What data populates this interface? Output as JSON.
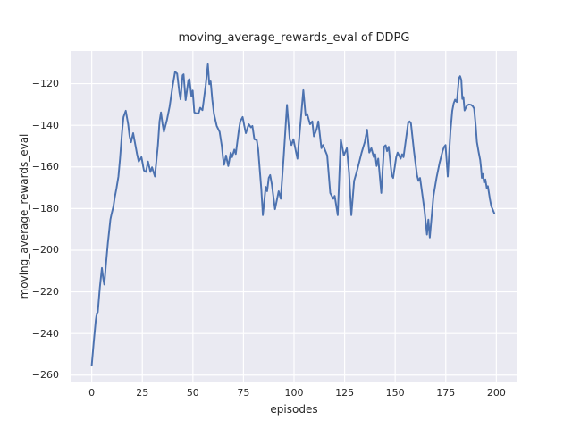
{
  "figure": {
    "title": "moving_average_rewards_eval of DDPG",
    "xlabel": "episodes",
    "ylabel": "moving_average_rewards_eval",
    "background_color": "#ffffff",
    "axes_background_color": "#eaeaf2",
    "grid_color": "#ffffff",
    "text_color": "#262626",
    "line_color": "#4c72b0"
  },
  "chart_data": {
    "type": "line",
    "title": "moving_average_rewards_eval of DDPG",
    "xlabel": "episodes",
    "ylabel": "moving_average_rewards_eval",
    "xlim": [
      -10,
      210
    ],
    "ylim": [
      -263.1,
      -104.3
    ],
    "xticks": [
      0,
      25,
      50,
      75,
      100,
      125,
      150,
      175,
      200
    ],
    "yticks": [
      -260,
      -240,
      -220,
      -200,
      -180,
      -160,
      -140,
      -120
    ],
    "grid": true,
    "legend": false,
    "series": [
      {
        "name": "moving_average_rewards_eval",
        "color": "#4c72b0",
        "points": [
          [
            0,
            -255.4
          ],
          [
            1,
            -244
          ],
          [
            2,
            -233.5
          ],
          [
            2.5,
            -230.4
          ],
          [
            3,
            -229.8
          ],
          [
            4,
            -218
          ],
          [
            5,
            -208.5
          ],
          [
            5.6,
            -213
          ],
          [
            6.2,
            -216.5
          ],
          [
            7,
            -207
          ],
          [
            8,
            -196.5
          ],
          [
            8.5,
            -191.8
          ],
          [
            9.2,
            -185.3
          ],
          [
            9.7,
            -183
          ],
          [
            10.7,
            -179
          ],
          [
            11.4,
            -174.6
          ],
          [
            12.2,
            -170.3
          ],
          [
            13.2,
            -164.6
          ],
          [
            14,
            -156
          ],
          [
            15,
            -143
          ],
          [
            15.7,
            -136
          ],
          [
            16.8,
            -133
          ],
          [
            18,
            -139.5
          ],
          [
            18.7,
            -145.3
          ],
          [
            19.4,
            -148.1
          ],
          [
            20.5,
            -143.8
          ],
          [
            21.7,
            -150.3
          ],
          [
            22.4,
            -153.8
          ],
          [
            23.2,
            -157.4
          ],
          [
            24.6,
            -155.3
          ],
          [
            25.8,
            -161.7
          ],
          [
            26.8,
            -162.4
          ],
          [
            27.8,
            -157.4
          ],
          [
            29,
            -162.4
          ],
          [
            29.8,
            -160.2
          ],
          [
            31.2,
            -164.6
          ],
          [
            32.7,
            -149.5
          ],
          [
            33.5,
            -138.1
          ],
          [
            34.2,
            -133.8
          ],
          [
            35,
            -139.5
          ],
          [
            35.7,
            -143.1
          ],
          [
            37.2,
            -137.4
          ],
          [
            38.5,
            -131
          ],
          [
            40,
            -121
          ],
          [
            41.2,
            -114.3
          ],
          [
            42.2,
            -115.2
          ],
          [
            43.3,
            -124.3
          ],
          [
            43.9,
            -127.5
          ],
          [
            44.9,
            -116
          ],
          [
            45.4,
            -115.5
          ],
          [
            46.4,
            -127.9
          ],
          [
            47.8,
            -118.3
          ],
          [
            48.3,
            -117.8
          ],
          [
            49.3,
            -126.2
          ],
          [
            49.9,
            -123.3
          ],
          [
            50.7,
            -133.8
          ],
          [
            51.7,
            -134.3
          ],
          [
            52.9,
            -134
          ],
          [
            53.6,
            -131.6
          ],
          [
            54.7,
            -132.7
          ],
          [
            56.3,
            -121
          ],
          [
            57.4,
            -110.7
          ],
          [
            58.1,
            -120.3
          ],
          [
            58.8,
            -118.9
          ],
          [
            59.6,
            -127.5
          ],
          [
            60.4,
            -134.5
          ],
          [
            61.8,
            -140.3
          ],
          [
            63.2,
            -143.1
          ],
          [
            64.3,
            -150
          ],
          [
            64.9,
            -155.5
          ],
          [
            65.4,
            -159
          ],
          [
            66.4,
            -154.5
          ],
          [
            67.5,
            -159.6
          ],
          [
            68.7,
            -153.1
          ],
          [
            69.4,
            -155.3
          ],
          [
            70.5,
            -151.7
          ],
          [
            71.2,
            -153.8
          ],
          [
            72.7,
            -142.4
          ],
          [
            73.4,
            -138.1
          ],
          [
            74.6,
            -136
          ],
          [
            75.7,
            -141.7
          ],
          [
            76.2,
            -143.8
          ],
          [
            77.6,
            -139.5
          ],
          [
            78.7,
            -141
          ],
          [
            79.4,
            -140.3
          ],
          [
            80.4,
            -146.7
          ],
          [
            81.6,
            -147.1
          ],
          [
            82.3,
            -151.7
          ],
          [
            83.1,
            -161.7
          ],
          [
            83.8,
            -170.3
          ],
          [
            84.6,
            -183.2
          ],
          [
            86,
            -169.6
          ],
          [
            86.7,
            -171.7
          ],
          [
            87.5,
            -165.3
          ],
          [
            88.2,
            -163.9
          ],
          [
            89,
            -168.2
          ],
          [
            90.6,
            -180.3
          ],
          [
            92.4,
            -171.7
          ],
          [
            93.4,
            -175.3
          ],
          [
            94.9,
            -154.5
          ],
          [
            96.5,
            -130.2
          ],
          [
            97.9,
            -146.7
          ],
          [
            98.7,
            -149.5
          ],
          [
            99.7,
            -146.7
          ],
          [
            100.9,
            -152.4
          ],
          [
            101.7,
            -156
          ],
          [
            103,
            -141
          ],
          [
            104.6,
            -123.1
          ],
          [
            105.7,
            -135.3
          ],
          [
            106.5,
            -134.5
          ],
          [
            107.9,
            -139.5
          ],
          [
            109,
            -138.1
          ],
          [
            109.8,
            -145.3
          ],
          [
            111.2,
            -141.7
          ],
          [
            112,
            -138.1
          ],
          [
            113.5,
            -151
          ],
          [
            114.3,
            -149.5
          ],
          [
            116.4,
            -154.5
          ],
          [
            117.9,
            -172.5
          ],
          [
            119.4,
            -175.3
          ],
          [
            120.1,
            -173.9
          ],
          [
            121.6,
            -183.2
          ],
          [
            123.1,
            -146.7
          ],
          [
            124.6,
            -154.5
          ],
          [
            126.1,
            -151
          ],
          [
            127.2,
            -163
          ],
          [
            128.3,
            -183.2
          ],
          [
            129.7,
            -166.7
          ],
          [
            131.2,
            -161.7
          ],
          [
            133.4,
            -153.1
          ],
          [
            135,
            -148
          ],
          [
            136.1,
            -142.1
          ],
          [
            137.2,
            -153.1
          ],
          [
            138.2,
            -151
          ],
          [
            139.4,
            -155.3
          ],
          [
            140.1,
            -153.9
          ],
          [
            140.8,
            -159.6
          ],
          [
            141.6,
            -156
          ],
          [
            143.1,
            -172.5
          ],
          [
            144.5,
            -150.3
          ],
          [
            145.3,
            -149.6
          ],
          [
            146,
            -152.4
          ],
          [
            146.8,
            -150.3
          ],
          [
            148.3,
            -163.9
          ],
          [
            149,
            -165.3
          ],
          [
            150.5,
            -155.3
          ],
          [
            151.2,
            -153.1
          ],
          [
            152.7,
            -156
          ],
          [
            153.4,
            -153.9
          ],
          [
            154.1,
            -155.3
          ],
          [
            156.4,
            -138.8
          ],
          [
            157.1,
            -138.1
          ],
          [
            157.8,
            -139
          ],
          [
            159.3,
            -152.4
          ],
          [
            160.8,
            -163.9
          ],
          [
            161.5,
            -166.7
          ],
          [
            162.3,
            -165.3
          ],
          [
            163.7,
            -175.3
          ],
          [
            164.5,
            -181
          ],
          [
            165.7,
            -192.5
          ],
          [
            166.4,
            -185.3
          ],
          [
            167.1,
            -193.9
          ],
          [
            168.9,
            -173.9
          ],
          [
            170.4,
            -165.3
          ],
          [
            171.9,
            -158.1
          ],
          [
            173.4,
            -152.4
          ],
          [
            174.2,
            -150.3
          ],
          [
            174.9,
            -149.5
          ],
          [
            176,
            -164.6
          ],
          [
            177.3,
            -143
          ],
          [
            178.2,
            -133.1
          ],
          [
            178.9,
            -129.5
          ],
          [
            179.6,
            -127.7
          ],
          [
            180.5,
            -128.8
          ],
          [
            181.5,
            -117.4
          ],
          [
            182.1,
            -116.4
          ],
          [
            182.7,
            -118.3
          ],
          [
            183.2,
            -127.3
          ],
          [
            183.7,
            -126.4
          ],
          [
            184.3,
            -132.9
          ],
          [
            185.5,
            -130.5
          ],
          [
            186.5,
            -130
          ],
          [
            187.5,
            -130.2
          ],
          [
            188.4,
            -130.9
          ],
          [
            189,
            -132
          ],
          [
            189.8,
            -140.3
          ],
          [
            190.4,
            -148
          ],
          [
            191.2,
            -152.5
          ],
          [
            192,
            -156.7
          ],
          [
            192.4,
            -160.3
          ],
          [
            192.8,
            -165.3
          ],
          [
            193.4,
            -163.4
          ],
          [
            193.9,
            -167.5
          ],
          [
            194.6,
            -166
          ],
          [
            195.3,
            -170.3
          ],
          [
            195.8,
            -169.3
          ],
          [
            196.8,
            -175.3
          ],
          [
            197.5,
            -178.9
          ],
          [
            199,
            -182.3
          ]
        ]
      }
    ]
  }
}
